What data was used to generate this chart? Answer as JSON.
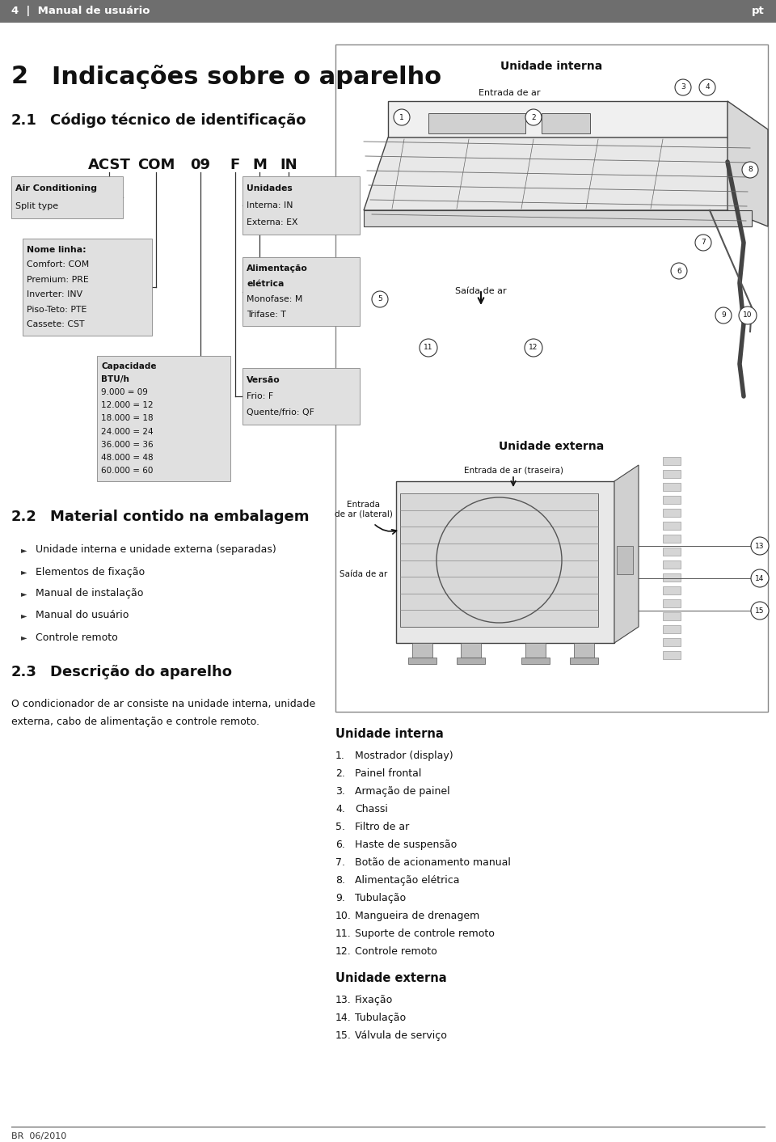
{
  "header_bg": "#6e6e6e",
  "header_text_left": "4  |  Manual de usuário",
  "header_text_right": "pt",
  "header_text_color": "#ffffff",
  "footer_text": "BR  06/2010",
  "page_bg": "#ffffff",
  "title_section": "2    Indicações sobre o aparelho",
  "subtitle_21": "2.1   Código técnico de identificação",
  "code_tokens": [
    "ACST",
    "COM",
    "09",
    "F",
    "M",
    "IN"
  ],
  "box_bg": "#e0e0e0",
  "box_border": "#888888",
  "subtitle_22": "2.2   Material contido na embalagem",
  "items_22": [
    "Unidade interna e unidade externa (separadas)",
    "Elementos de fixação",
    "Manual de instalação",
    "Manual do usuário",
    "Controle remoto"
  ],
  "subtitle_23": "2.3   Descrição do aparelho",
  "text_23": "O condicionador de ar consiste na unidade interna, unidade\nexterna, cabo de alimentação e controle remoto.",
  "diagram_border": "#888888",
  "unidade_interna_title": "Unidade interna",
  "unidade_externa_title": "Unidade externa",
  "int_items": [
    "Mostrador (display)",
    "Painel frontal",
    "Armação de painel",
    "Chassi",
    "Filtro de ar",
    "Haste de suspensão",
    "Botão de acionamento manual",
    "Alimentação elétrica",
    "Tubulação",
    "Mangueira de drenagem",
    "Suporte de controle remoto",
    "Controle remoto"
  ],
  "ext_items": [
    "Fixação",
    "Tubulação",
    "Válvula de serviço"
  ]
}
